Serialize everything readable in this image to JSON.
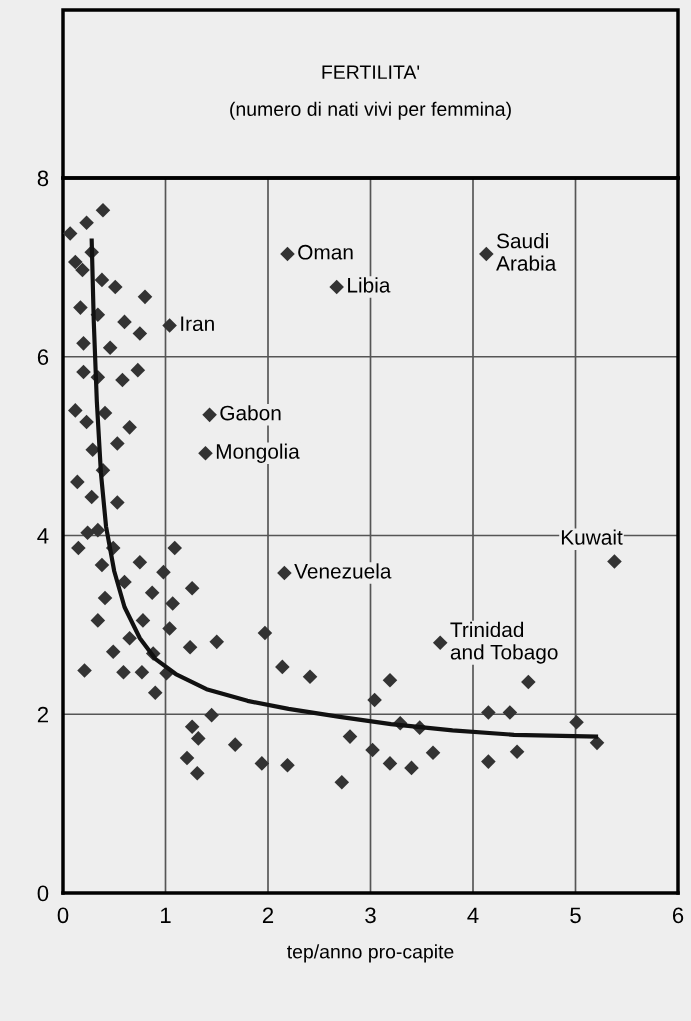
{
  "chart_data": {
    "type": "scatter",
    "title": "FERTILITA'",
    "subtitle": "(numero di nati vivi per femmina)",
    "xlabel": "tep/anno pro-capite",
    "xlim": [
      0,
      6
    ],
    "xticks": [
      0,
      1,
      2,
      3,
      4,
      5,
      6
    ],
    "ylim": [
      0,
      8
    ],
    "yticks": [
      0,
      2,
      4,
      6,
      8
    ],
    "grid": true,
    "marker": "diamond",
    "series": [
      {
        "color": "#333333",
        "x": [
          0.39,
          0.23,
          0.07,
          0.28,
          0.12,
          0.19,
          0.38,
          0.51,
          0.8,
          0.17,
          0.34,
          0.6,
          0.75,
          1.04,
          0.2,
          0.46,
          0.2,
          0.34,
          0.58,
          0.73,
          0.12,
          0.41,
          0.23,
          0.65,
          0.53,
          0.29,
          1.43,
          1.39,
          0.39,
          0.14,
          0.28,
          0.53,
          0.34,
          0.24,
          0.15,
          0.49,
          1.09,
          0.75,
          0.38,
          0.98,
          0.6,
          1.26,
          0.87,
          0.41,
          1.07,
          0.34,
          0.78,
          1.04,
          0.65,
          1.24,
          1.5,
          1.97,
          0.49,
          0.88,
          0.21,
          0.59,
          0.77,
          1.01,
          2.14,
          2.41,
          0.9,
          1.45,
          1.26,
          1.32,
          1.68,
          1.21,
          1.94,
          2.19,
          1.31,
          3.68,
          3.19,
          4.54,
          3.04,
          4.15,
          4.36,
          5.01,
          3.29,
          3.48,
          2.8,
          3.61,
          3.02,
          4.43,
          5.21,
          4.15,
          3.19,
          3.4,
          2.72,
          2.19,
          2.67,
          4.13,
          5.38,
          2.16
        ],
        "values": [
          7.64,
          7.5,
          7.38,
          7.17,
          7.06,
          6.97,
          6.86,
          6.78,
          6.67,
          6.55,
          6.47,
          6.39,
          6.26,
          6.35,
          6.15,
          6.1,
          5.83,
          5.77,
          5.74,
          5.85,
          5.4,
          5.37,
          5.27,
          5.21,
          5.03,
          4.96,
          5.35,
          4.92,
          4.73,
          4.6,
          4.43,
          4.37,
          4.06,
          4.03,
          3.86,
          3.86,
          3.86,
          3.7,
          3.67,
          3.59,
          3.48,
          3.41,
          3.36,
          3.3,
          3.24,
          3.05,
          3.05,
          2.96,
          2.85,
          2.75,
          2.81,
          2.91,
          2.7,
          2.68,
          2.49,
          2.47,
          2.47,
          2.46,
          2.53,
          2.42,
          2.24,
          1.99,
          1.86,
          1.73,
          1.66,
          1.51,
          1.45,
          1.43,
          1.34,
          2.8,
          2.38,
          2.36,
          2.16,
          2.02,
          2.02,
          1.91,
          1.9,
          1.85,
          1.75,
          1.57,
          1.6,
          1.58,
          1.68,
          1.47,
          1.45,
          1.4,
          1.24,
          7.15,
          6.78,
          7.15,
          3.71,
          3.58
        ]
      },
      {
        "type": "line",
        "color": "#111111",
        "marker": "none",
        "x": [
          0.28,
          0.3,
          0.33,
          0.37,
          0.42,
          0.5,
          0.6,
          0.75,
          0.9,
          1.1,
          1.4,
          1.8,
          2.2,
          2.7,
          3.2,
          3.8,
          4.4,
          5.2
        ],
        "values": [
          7.3,
          6.4,
          5.5,
          4.7,
          4.1,
          3.6,
          3.2,
          2.85,
          2.62,
          2.45,
          2.28,
          2.15,
          2.06,
          1.97,
          1.89,
          1.82,
          1.77,
          1.75
        ]
      }
    ],
    "annotations": [
      {
        "text": "Iran",
        "x": 1.04,
        "y": 6.35
      },
      {
        "text": "Oman",
        "x": 2.19,
        "y": 7.15
      },
      {
        "text": "Libia",
        "x": 2.67,
        "y": 6.78
      },
      {
        "text": "Saudi\nArabia",
        "x": 4.13,
        "y": 7.15
      },
      {
        "text": "Gabon",
        "x": 1.43,
        "y": 5.35
      },
      {
        "text": "Mongolia",
        "x": 1.39,
        "y": 4.92
      },
      {
        "text": "Kuwait",
        "x": 5.38,
        "y": 3.71
      },
      {
        "text": "Venezuela",
        "x": 2.16,
        "y": 3.58
      },
      {
        "text": "Trinidad\nand Tobago",
        "x": 3.68,
        "y": 2.8
      }
    ]
  }
}
